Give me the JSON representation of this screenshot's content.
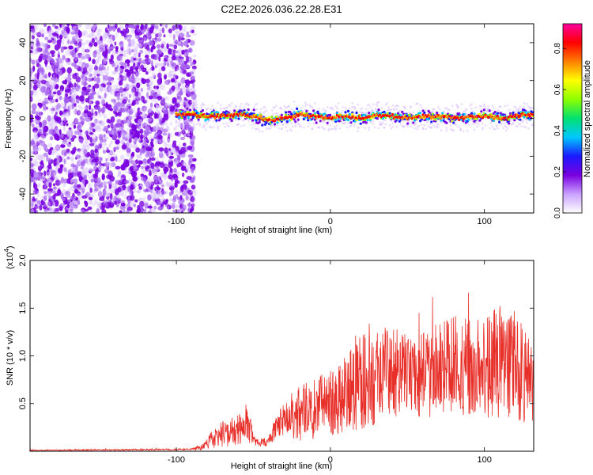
{
  "title": "C2E2.2026.036.22.28.E31",
  "colors": {
    "background": "#ffffff",
    "snr_line": "#e8302a",
    "noise_dot": "#8a2be2",
    "axis": "#000000"
  },
  "colorbar": {
    "label": "Normalized spectral amplitude",
    "range": [
      0.0,
      0.92
    ],
    "ticks": [
      "0.0",
      "0.2",
      "0.4",
      "0.6",
      "0.8"
    ],
    "tick_values": [
      0.0,
      0.2,
      0.4,
      0.6,
      0.8
    ],
    "colors": [
      "#ffffff",
      "#c9a0ff",
      "#7a00e0",
      "#1a1aff",
      "#00c8ff",
      "#00e070",
      "#8cff00",
      "#ffff00",
      "#ff8000",
      "#ff0000",
      "#ff00a0"
    ]
  },
  "chart_data": [
    {
      "type": "heatmap",
      "name": "spectrogram",
      "title": "C2E2.2026.036.22.28.E31",
      "xlabel": "Height of straight line (km)",
      "ylabel": "Frequency (Hz)",
      "xlim": [
        -195,
        132
      ],
      "ylim": [
        -50,
        50
      ],
      "x_ticks": [
        -100,
        0,
        100
      ],
      "x_tick_labels": [
        "-100",
        "0",
        "100"
      ],
      "y_ticks": [
        -40,
        -20,
        0,
        20,
        40
      ],
      "y_tick_labels": [
        "-40",
        "-20",
        "0",
        "20",
        "40"
      ],
      "noise_region_x": [
        -195,
        -88
      ],
      "signal_start_x": -100,
      "ridge": {
        "x": [
          -100,
          -90,
          -80,
          -70,
          -60,
          -50,
          -40,
          -30,
          -20,
          -10,
          0,
          10,
          20,
          30,
          40,
          50,
          60,
          70,
          80,
          90,
          100,
          110,
          120,
          130
        ],
        "freq": [
          2,
          2,
          1,
          1,
          2,
          1,
          -1,
          0,
          2,
          1,
          0,
          1,
          0,
          2,
          1,
          0,
          1,
          1,
          0,
          1,
          1,
          0,
          1,
          2
        ]
      }
    },
    {
      "type": "line",
      "name": "snr",
      "xlabel": "Height of straight line (km)",
      "ylabel": "SNR (10 * v/v)",
      "multiplier_label": "(x10",
      "multiplier_exp": "4",
      "multiplier_close": ")",
      "xlim": [
        -195,
        132
      ],
      "ylim": [
        0,
        2.0
      ],
      "x_ticks": [
        -100,
        0,
        100
      ],
      "x_tick_labels": [
        "-100",
        "0",
        "100"
      ],
      "y_ticks": [
        0.5,
        1.0,
        1.5,
        2.0
      ],
      "y_tick_labels": [
        "0.5",
        "1.0",
        "1.5",
        "2.0"
      ],
      "envelope": {
        "x": [
          -195,
          -90,
          -82,
          -78,
          -70,
          -60,
          -52,
          -50,
          -46,
          -40,
          -35,
          -30,
          -25,
          -20,
          -10,
          0,
          10,
          20,
          30,
          40,
          50,
          60,
          70,
          80,
          90,
          100,
          110,
          120,
          130
        ],
        "mean": [
          0.01,
          0.02,
          0.05,
          0.12,
          0.18,
          0.22,
          0.28,
          0.12,
          0.08,
          0.1,
          0.25,
          0.35,
          0.4,
          0.38,
          0.45,
          0.5,
          0.62,
          0.72,
          0.78,
          0.85,
          0.8,
          0.8,
          0.86,
          0.9,
          0.88,
          0.9,
          0.95,
          0.9,
          0.7
        ],
        "spread": [
          0.005,
          0.01,
          0.04,
          0.1,
          0.15,
          0.18,
          0.22,
          0.05,
          0.05,
          0.08,
          0.15,
          0.22,
          0.3,
          0.35,
          0.35,
          0.4,
          0.45,
          0.55,
          0.55,
          0.55,
          0.45,
          0.5,
          0.55,
          0.6,
          0.55,
          0.6,
          0.7,
          0.6,
          0.55
        ]
      }
    }
  ]
}
